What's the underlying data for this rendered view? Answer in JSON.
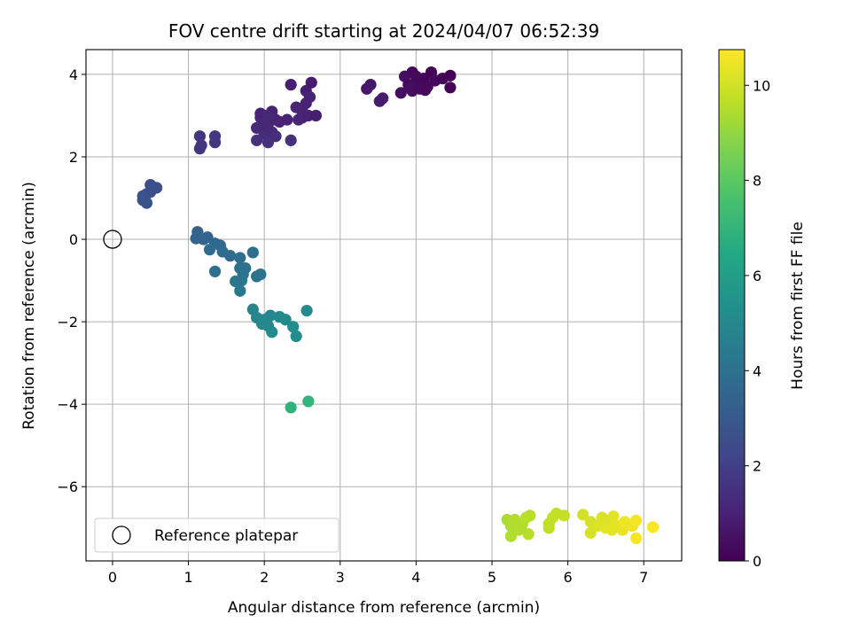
{
  "chart_data": {
    "type": "scatter",
    "title": "FOV centre drift starting at 2024/04/07 06:52:39",
    "xlabel": "Angular distance from reference (arcmin)",
    "ylabel": "Rotation from reference (arcmin)",
    "xlim": [
      -0.35,
      7.5
    ],
    "ylim": [
      -7.8,
      4.6
    ],
    "xticks": [
      0,
      1,
      2,
      3,
      4,
      5,
      6,
      7
    ],
    "yticks": [
      -6,
      -4,
      -2,
      0,
      2,
      4
    ],
    "grid": true,
    "legend": {
      "placement": "bottom-left",
      "entries": [
        "Reference platepar"
      ]
    },
    "reference_point": {
      "x": 0,
      "y": 0,
      "label": "Reference platepar"
    },
    "colorbar": {
      "label": "Hours from first FF file",
      "range": [
        0,
        10.75
      ],
      "ticks": [
        0,
        2,
        4,
        6,
        8,
        10
      ],
      "colormap": "viridis"
    },
    "points": [
      {
        "x": 3.9,
        "y": 3.75,
        "t": 0.2
      },
      {
        "x": 3.95,
        "y": 4.05,
        "t": 0.25
      },
      {
        "x": 4.0,
        "y": 3.8,
        "t": 0.3
      },
      {
        "x": 4.05,
        "y": 3.65,
        "t": 0.2
      },
      {
        "x": 4.1,
        "y": 3.9,
        "t": 0.15
      },
      {
        "x": 4.15,
        "y": 3.7,
        "t": 0.3
      },
      {
        "x": 4.2,
        "y": 4.05,
        "t": 0.1
      },
      {
        "x": 4.25,
        "y": 3.85,
        "t": 0.2
      },
      {
        "x": 4.35,
        "y": 3.9,
        "t": 0.1
      },
      {
        "x": 4.45,
        "y": 3.97,
        "t": 0.05
      },
      {
        "x": 4.45,
        "y": 3.68,
        "t": 0.05
      },
      {
        "x": 3.85,
        "y": 3.95,
        "t": 0.35
      },
      {
        "x": 3.8,
        "y": 3.55,
        "t": 0.4
      },
      {
        "x": 3.95,
        "y": 3.6,
        "t": 0.3
      },
      {
        "x": 4.0,
        "y": 3.95,
        "t": 0.25
      },
      {
        "x": 4.05,
        "y": 3.75,
        "t": 0.2
      },
      {
        "x": 3.92,
        "y": 3.68,
        "t": 0.35
      },
      {
        "x": 4.12,
        "y": 3.62,
        "t": 0.2
      },
      {
        "x": 3.35,
        "y": 3.65,
        "t": 0.7
      },
      {
        "x": 3.4,
        "y": 3.75,
        "t": 0.7
      },
      {
        "x": 3.52,
        "y": 3.35,
        "t": 0.8
      },
      {
        "x": 3.56,
        "y": 3.42,
        "t": 0.8
      },
      {
        "x": 2.0,
        "y": 3.0,
        "t": 1.1
      },
      {
        "x": 2.05,
        "y": 2.8,
        "t": 1.2
      },
      {
        "x": 1.95,
        "y": 2.95,
        "t": 1.2
      },
      {
        "x": 2.1,
        "y": 3.1,
        "t": 1.0
      },
      {
        "x": 2.15,
        "y": 2.9,
        "t": 1.1
      },
      {
        "x": 1.9,
        "y": 2.7,
        "t": 1.3
      },
      {
        "x": 2.0,
        "y": 2.55,
        "t": 1.4
      },
      {
        "x": 2.05,
        "y": 2.35,
        "t": 1.5
      },
      {
        "x": 1.9,
        "y": 2.4,
        "t": 1.5
      },
      {
        "x": 2.2,
        "y": 2.85,
        "t": 1.1
      },
      {
        "x": 2.3,
        "y": 2.9,
        "t": 1.0
      },
      {
        "x": 1.95,
        "y": 3.05,
        "t": 1.0
      },
      {
        "x": 2.1,
        "y": 2.6,
        "t": 1.3
      },
      {
        "x": 2.15,
        "y": 2.5,
        "t": 1.4
      },
      {
        "x": 2.35,
        "y": 2.4,
        "t": 1.5
      },
      {
        "x": 2.05,
        "y": 3.0,
        "t": 1.2
      },
      {
        "x": 2.0,
        "y": 2.75,
        "t": 1.2
      },
      {
        "x": 2.35,
        "y": 3.75,
        "t": 0.9
      },
      {
        "x": 2.55,
        "y": 3.6,
        "t": 0.9
      },
      {
        "x": 2.62,
        "y": 3.8,
        "t": 0.8
      },
      {
        "x": 2.6,
        "y": 3.45,
        "t": 1.0
      },
      {
        "x": 2.55,
        "y": 3.3,
        "t": 1.0
      },
      {
        "x": 2.5,
        "y": 3.1,
        "t": 1.0
      },
      {
        "x": 2.42,
        "y": 3.2,
        "t": 1.1
      },
      {
        "x": 2.5,
        "y": 2.95,
        "t": 1.1
      },
      {
        "x": 2.45,
        "y": 2.9,
        "t": 1.1
      },
      {
        "x": 2.58,
        "y": 3.0,
        "t": 1.0
      },
      {
        "x": 2.68,
        "y": 3.0,
        "t": 0.9
      },
      {
        "x": 1.15,
        "y": 2.5,
        "t": 1.6
      },
      {
        "x": 1.17,
        "y": 2.28,
        "t": 1.7
      },
      {
        "x": 1.15,
        "y": 2.2,
        "t": 1.7
      },
      {
        "x": 1.35,
        "y": 2.5,
        "t": 1.7
      },
      {
        "x": 1.35,
        "y": 2.35,
        "t": 1.7
      },
      {
        "x": 0.5,
        "y": 1.32,
        "t": 2.6
      },
      {
        "x": 0.58,
        "y": 1.25,
        "t": 2.6
      },
      {
        "x": 0.45,
        "y": 1.1,
        "t": 2.7
      },
      {
        "x": 0.5,
        "y": 1.15,
        "t": 2.6
      },
      {
        "x": 0.4,
        "y": 1.05,
        "t": 2.7
      },
      {
        "x": 0.4,
        "y": 0.95,
        "t": 2.8
      },
      {
        "x": 0.45,
        "y": 0.88,
        "t": 2.8
      },
      {
        "x": 1.12,
        "y": 0.18,
        "t": 3.4
      },
      {
        "x": 1.25,
        "y": 0.05,
        "t": 3.5
      },
      {
        "x": 1.2,
        "y": 0.0,
        "t": 3.5
      },
      {
        "x": 1.1,
        "y": 0.02,
        "t": 3.5
      },
      {
        "x": 1.35,
        "y": -0.1,
        "t": 3.6
      },
      {
        "x": 1.42,
        "y": -0.15,
        "t": 3.6
      },
      {
        "x": 1.28,
        "y": -0.25,
        "t": 3.7
      },
      {
        "x": 1.45,
        "y": -0.3,
        "t": 3.8
      },
      {
        "x": 1.55,
        "y": -0.4,
        "t": 3.8
      },
      {
        "x": 1.68,
        "y": -0.45,
        "t": 3.9
      },
      {
        "x": 1.85,
        "y": -0.32,
        "t": 3.9
      },
      {
        "x": 1.68,
        "y": -0.7,
        "t": 4.0
      },
      {
        "x": 1.75,
        "y": -0.7,
        "t": 4.0
      },
      {
        "x": 1.72,
        "y": -0.85,
        "t": 4.1
      },
      {
        "x": 1.9,
        "y": -0.9,
        "t": 4.1
      },
      {
        "x": 1.95,
        "y": -0.85,
        "t": 4.1
      },
      {
        "x": 1.62,
        "y": -1.02,
        "t": 4.2
      },
      {
        "x": 1.7,
        "y": -1.0,
        "t": 4.2
      },
      {
        "x": 1.68,
        "y": -1.25,
        "t": 4.3
      },
      {
        "x": 1.35,
        "y": -0.78,
        "t": 4.0
      },
      {
        "x": 1.85,
        "y": -1.7,
        "t": 4.8
      },
      {
        "x": 1.9,
        "y": -1.9,
        "t": 4.9
      },
      {
        "x": 1.97,
        "y": -2.05,
        "t": 5.0
      },
      {
        "x": 2.0,
        "y": -1.95,
        "t": 5.0
      },
      {
        "x": 2.05,
        "y": -2.1,
        "t": 5.0
      },
      {
        "x": 2.08,
        "y": -1.85,
        "t": 4.9
      },
      {
        "x": 2.1,
        "y": -2.25,
        "t": 5.1
      },
      {
        "x": 2.2,
        "y": -1.88,
        "t": 5.0
      },
      {
        "x": 2.28,
        "y": -1.95,
        "t": 5.1
      },
      {
        "x": 2.38,
        "y": -2.12,
        "t": 5.2
      },
      {
        "x": 2.42,
        "y": -2.35,
        "t": 5.2
      },
      {
        "x": 2.56,
        "y": -1.73,
        "t": 5.1
      },
      {
        "x": 2.35,
        "y": -4.08,
        "t": 6.9
      },
      {
        "x": 2.58,
        "y": -3.93,
        "t": 7.0
      },
      {
        "x": 5.2,
        "y": -6.8,
        "t": 9.4
      },
      {
        "x": 5.25,
        "y": -6.95,
        "t": 9.4
      },
      {
        "x": 5.3,
        "y": -6.8,
        "t": 9.5
      },
      {
        "x": 5.35,
        "y": -7.05,
        "t": 9.5
      },
      {
        "x": 5.4,
        "y": -6.9,
        "t": 9.5
      },
      {
        "x": 5.45,
        "y": -6.75,
        "t": 9.6
      },
      {
        "x": 5.5,
        "y": -6.7,
        "t": 9.6
      },
      {
        "x": 5.25,
        "y": -7.2,
        "t": 9.5
      },
      {
        "x": 5.48,
        "y": -7.15,
        "t": 9.6
      },
      {
        "x": 5.38,
        "y": -7.0,
        "t": 9.5
      },
      {
        "x": 5.3,
        "y": -6.85,
        "t": 9.5
      },
      {
        "x": 5.75,
        "y": -6.9,
        "t": 9.7
      },
      {
        "x": 5.8,
        "y": -6.75,
        "t": 9.8
      },
      {
        "x": 5.75,
        "y": -7.0,
        "t": 9.7
      },
      {
        "x": 5.85,
        "y": -6.65,
        "t": 9.8
      },
      {
        "x": 5.95,
        "y": -6.7,
        "t": 9.8
      },
      {
        "x": 6.2,
        "y": -6.68,
        "t": 10.0
      },
      {
        "x": 6.3,
        "y": -6.85,
        "t": 10.1
      },
      {
        "x": 6.3,
        "y": -7.12,
        "t": 10.1
      },
      {
        "x": 6.4,
        "y": -6.95,
        "t": 10.2
      },
      {
        "x": 6.45,
        "y": -6.75,
        "t": 10.2
      },
      {
        "x": 6.5,
        "y": -7.0,
        "t": 10.3
      },
      {
        "x": 6.55,
        "y": -6.9,
        "t": 10.3
      },
      {
        "x": 6.6,
        "y": -6.72,
        "t": 10.3
      },
      {
        "x": 6.65,
        "y": -6.95,
        "t": 10.4
      },
      {
        "x": 6.72,
        "y": -7.05,
        "t": 10.4
      },
      {
        "x": 6.75,
        "y": -6.85,
        "t": 10.5
      },
      {
        "x": 6.85,
        "y": -6.95,
        "t": 10.5
      },
      {
        "x": 6.9,
        "y": -6.82,
        "t": 10.6
      },
      {
        "x": 6.9,
        "y": -7.25,
        "t": 10.6
      },
      {
        "x": 7.12,
        "y": -6.98,
        "t": 10.7
      },
      {
        "x": 6.48,
        "y": -6.8,
        "t": 10.2
      },
      {
        "x": 6.58,
        "y": -7.05,
        "t": 10.3
      }
    ]
  }
}
